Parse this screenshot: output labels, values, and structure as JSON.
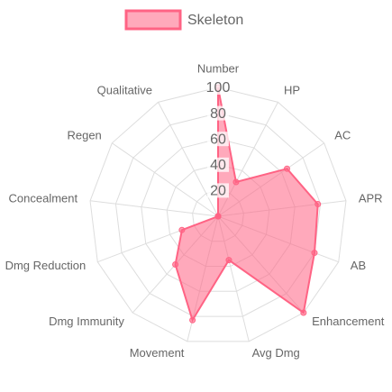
{
  "chart_data": {
    "type": "radar",
    "categories": [
      "Number",
      "HP",
      "AC",
      "APR",
      "AB",
      "Enhancement",
      "Avg Dmg",
      "Movement",
      "Dmg Immunity",
      "Dmg Reduction",
      "Concealment",
      "Regen",
      "Qualitative"
    ],
    "series": [
      {
        "name": "Skeleton",
        "color": "#ff6384",
        "values": [
          100,
          30,
          65,
          78,
          80,
          100,
          35,
          83,
          50,
          30,
          0,
          0,
          0
        ]
      }
    ],
    "rlim": [
      0,
      100
    ],
    "rticks": [
      20,
      40,
      60,
      80,
      100
    ],
    "grid": true,
    "legend": "top"
  }
}
